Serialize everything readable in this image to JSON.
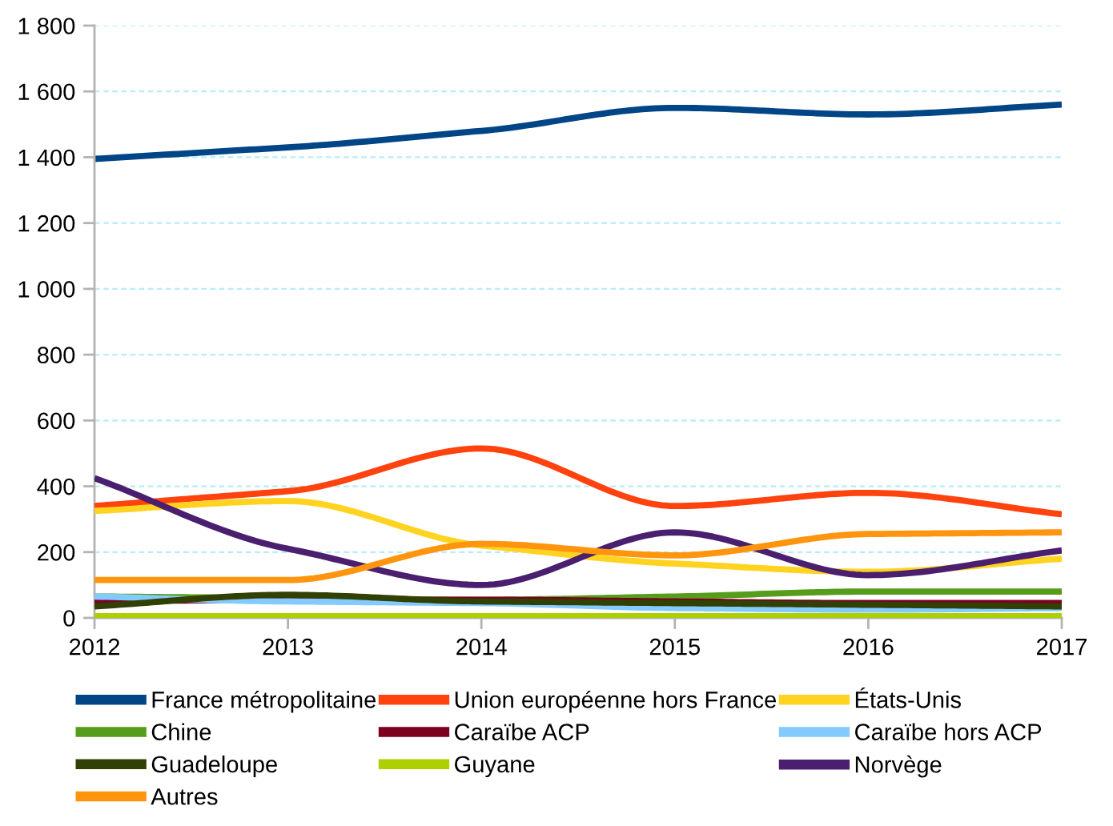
{
  "chart_data": {
    "type": "line",
    "x": [
      2012,
      2013,
      2014,
      2015,
      2016,
      2017
    ],
    "xlim": [
      2012,
      2017
    ],
    "xticks": [
      2012,
      2013,
      2014,
      2015,
      2016,
      2017
    ],
    "ylim": [
      0,
      1800
    ],
    "yticks": [
      0,
      200,
      400,
      600,
      800,
      {
        "value": 1000,
        "label": "1 000"
      },
      {
        "value": 1200,
        "label": "1 200"
      },
      {
        "value": 1400,
        "label": "1 400"
      },
      {
        "value": 1600,
        "label": "1 600"
      },
      {
        "value": 1800,
        "label": "1 800"
      }
    ],
    "grid": "y",
    "legend": "bottom",
    "line_style": "solid",
    "series": [
      {
        "name": "France métropolitaine",
        "color": "#004586",
        "values": [
          1395,
          1430,
          1480,
          1550,
          1530,
          1560
        ]
      },
      {
        "name": "Union européenne hors France",
        "color": "#ff420e",
        "values": [
          340,
          385,
          515,
          340,
          380,
          315
        ]
      },
      {
        "name": "États-Unis",
        "color": "#ffd320",
        "values": [
          325,
          355,
          220,
          165,
          140,
          180
        ]
      },
      {
        "name": "Chine",
        "color": "#579d1c",
        "values": [
          65,
          60,
          55,
          65,
          80,
          80
        ]
      },
      {
        "name": "Caraïbe ACP",
        "color": "#7e0021",
        "values": [
          50,
          55,
          55,
          50,
          45,
          45
        ]
      },
      {
        "name": "Caraïbe hors ACP",
        "color": "#83caff",
        "values": [
          65,
          50,
          45,
          30,
          25,
          30
        ]
      },
      {
        "name": "Guadeloupe",
        "color": "#314004",
        "values": [
          35,
          70,
          50,
          45,
          40,
          35
        ]
      },
      {
        "name": "Guyane",
        "color": "#aecf00",
        "values": [
          5,
          5,
          5,
          5,
          5,
          5
        ]
      },
      {
        "name": "Norvège",
        "color": "#4b1f6f",
        "values": [
          425,
          210,
          100,
          260,
          130,
          205
        ]
      },
      {
        "name": "Autres",
        "color": "#ff950e",
        "values": [
          115,
          115,
          225,
          190,
          255,
          260
        ]
      }
    ]
  }
}
